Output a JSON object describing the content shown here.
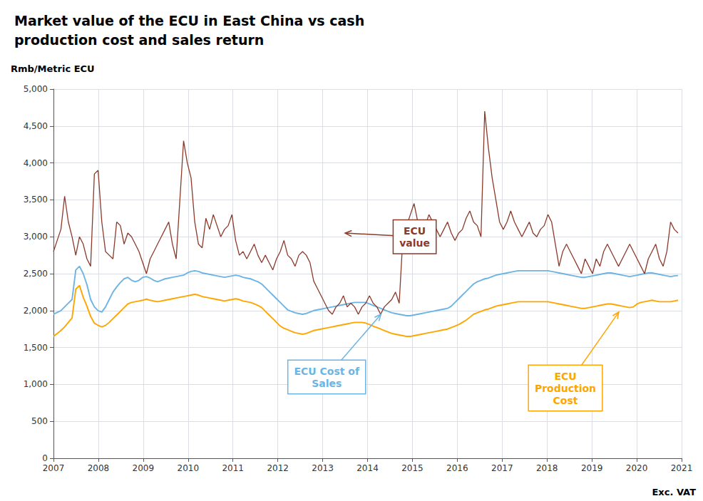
{
  "chart_data": {
    "type": "line",
    "title": "Market value of the ECU in East China vs cash\nproduction cost and sales return",
    "ylabel": "Rmb/Metric ECU",
    "footnote": "Exc. VAT",
    "grid": true,
    "xlim": [
      2007.0,
      2021.0
    ],
    "xticks": [
      2007,
      2008,
      2009,
      2010,
      2011,
      2012,
      2013,
      2014,
      2015,
      2016,
      2017,
      2018,
      2019,
      2020,
      2021
    ],
    "ylim": [
      0,
      5000
    ],
    "yticks": [
      0,
      500,
      {
        "value": 1000,
        "label": "1,000"
      },
      {
        "value": 1500,
        "label": "1,500"
      },
      {
        "value": 2000,
        "label": "2,000"
      },
      {
        "value": 2500,
        "label": "2,500"
      },
      {
        "value": 3000,
        "label": "3,000"
      },
      {
        "value": 3500,
        "label": "3,500"
      },
      {
        "value": 4000,
        "label": "4,000"
      },
      {
        "value": 4500,
        "label": "4,500"
      },
      {
        "value": 5000,
        "label": "5,000"
      }
    ],
    "x": [
      2007,
      2007.082857,
      2007.165714,
      2007.248571,
      2007.331429,
      2007.414286,
      2007.497143,
      2007.58,
      2007.662857,
      2007.745714,
      2007.828571,
      2007.911429,
      2007.994286,
      2008.077143,
      2008.16,
      2008.242857,
      2008.325714,
      2008.408571,
      2008.491429,
      2008.574286,
      2008.657143,
      2008.74,
      2008.822857,
      2008.905714,
      2008.988571,
      2009.071429,
      2009.154286,
      2009.237143,
      2009.32,
      2009.402857,
      2009.485714,
      2009.568571,
      2009.651429,
      2009.734286,
      2009.817143,
      2009.9,
      2009.982857,
      2010.065714,
      2010.148571,
      2010.231429,
      2010.314286,
      2010.397143,
      2010.48,
      2010.562857,
      2010.645714,
      2010.728571,
      2010.811429,
      2010.894286,
      2010.977143,
      2011.06,
      2011.142857,
      2011.225714,
      2011.308571,
      2011.391429,
      2011.474286,
      2011.557143,
      2011.64,
      2011.722857,
      2011.805714,
      2011.888571,
      2011.971429,
      2012.054286,
      2012.137143,
      2012.22,
      2012.302857,
      2012.385714,
      2012.468571,
      2012.551429,
      2012.634286,
      2012.717143,
      2012.8,
      2012.882857,
      2012.965714,
      2013.048571,
      2013.131429,
      2013.214286,
      2013.297143,
      2013.38,
      2013.462857,
      2013.545714,
      2013.628571,
      2013.711429,
      2013.794286,
      2013.877143,
      2013.96,
      2014.042857,
      2014.125714,
      2014.208571,
      2014.291429,
      2014.374286,
      2014.457143,
      2014.54,
      2014.622857,
      2014.705714,
      2014.788571,
      2014.871429,
      2014.954286,
      2015.037143,
      2015.12,
      2015.202857,
      2015.285714,
      2015.368571,
      2015.451429,
      2015.534286,
      2015.617143,
      2015.7,
      2015.782857,
      2015.865714,
      2015.948571,
      2016.031429,
      2016.114286,
      2016.197143,
      2016.28,
      2016.362857,
      2016.445714,
      2016.528571,
      2016.611429,
      2016.694286,
      2016.777143,
      2016.86,
      2016.942857,
      2017.025714,
      2017.108571,
      2017.191429,
      2017.274286,
      2017.357143,
      2017.44,
      2017.522857,
      2017.605714,
      2017.688571,
      2017.771429,
      2017.854286,
      2017.937143,
      2018.02,
      2018.102857,
      2018.185714,
      2018.268571,
      2018.351429,
      2018.434286,
      2018.517143,
      2018.6,
      2018.682857,
      2018.765714,
      2018.848571,
      2018.931429,
      2019.014286,
      2019.097143,
      2019.18,
      2019.262857,
      2019.345714,
      2019.428571,
      2019.511429,
      2019.594286,
      2019.677143,
      2019.76,
      2019.842857,
      2019.925714,
      2020.008571,
      2020.091429,
      2020.174286,
      2020.257143,
      2020.34,
      2020.422857,
      2020.505714,
      2020.588571,
      2020.671429,
      2020.754286,
      2020.837143,
      2020.92
    ],
    "series": [
      {
        "color": "#8B3A2A",
        "values": [
          2800,
          2950,
          3100,
          3550,
          3200,
          3000,
          2750,
          3000,
          2900,
          2700,
          2600,
          3850,
          3900,
          3200,
          2800,
          2750,
          2700,
          3200,
          3150,
          2900,
          3050,
          3000,
          2900,
          2800,
          2650,
          2500,
          2700,
          2800,
          2900,
          3000,
          3100,
          3200,
          2900,
          2700,
          3500,
          4300,
          4000,
          3800,
          3200,
          2900,
          2850,
          3250,
          3100,
          3300,
          3150,
          3000,
          3100,
          3150,
          3300,
          2950,
          2750,
          2800,
          2700,
          2800,
          2900,
          2750,
          2650,
          2750,
          2650,
          2550,
          2700,
          2800,
          2950,
          2750,
          2700,
          2600,
          2750,
          2800,
          2750,
          2650,
          2400,
          2300,
          2200,
          2100,
          2000,
          1950,
          2050,
          2100,
          2200,
          2050,
          2100,
          2050,
          1950,
          2050,
          2100,
          2200,
          2100,
          2050,
          1950,
          2050,
          2100,
          2150,
          2250,
          2100,
          3000,
          3150,
          3300,
          3450,
          3200,
          2950,
          3150,
          3300,
          3200,
          3100,
          3000,
          3100,
          3200,
          3050,
          2950,
          3050,
          3100,
          3250,
          3350,
          3200,
          3150,
          3000,
          4700,
          4200,
          3800,
          3500,
          3200,
          3100,
          3200,
          3350,
          3200,
          3100,
          3000,
          3100,
          3200,
          3050,
          3000,
          3100,
          3150,
          3300,
          3200,
          2900,
          2600,
          2800,
          2900,
          2800,
          2700,
          2600,
          2500,
          2700,
          2600,
          2500,
          2700,
          2600,
          2800,
          2900,
          2800,
          2700,
          2600,
          2700,
          2800,
          2900,
          2800,
          2700,
          2600,
          2500,
          2700,
          2800,
          2900,
          2700,
          2600,
          2800,
          3200,
          3100,
          3050
        ]
      },
      {
        "color": "#6CB4E4",
        "values": [
          1950,
          1975,
          2000,
          2050,
          2100,
          2150,
          2550,
          2600,
          2500,
          2350,
          2150,
          2050,
          2000,
          1980,
          2050,
          2150,
          2250,
          2320,
          2380,
          2430,
          2450,
          2410,
          2390,
          2410,
          2450,
          2460,
          2440,
          2410,
          2390,
          2410,
          2430,
          2440,
          2450,
          2460,
          2470,
          2480,
          2510,
          2530,
          2540,
          2530,
          2510,
          2500,
          2490,
          2480,
          2470,
          2460,
          2450,
          2460,
          2470,
          2480,
          2470,
          2450,
          2440,
          2430,
          2410,
          2390,
          2360,
          2310,
          2260,
          2210,
          2160,
          2110,
          2060,
          2010,
          1990,
          1970,
          1960,
          1950,
          1960,
          1980,
          2000,
          2010,
          2020,
          2030,
          2040,
          2050,
          2060,
          2070,
          2080,
          2090,
          2100,
          2110,
          2110,
          2110,
          2110,
          2090,
          2070,
          2050,
          2030,
          2010,
          1990,
          1970,
          1960,
          1950,
          1940,
          1930,
          1930,
          1940,
          1950,
          1960,
          1970,
          1980,
          1990,
          2000,
          2010,
          2020,
          2030,
          2060,
          2110,
          2160,
          2210,
          2260,
          2310,
          2360,
          2390,
          2410,
          2430,
          2440,
          2460,
          2480,
          2490,
          2500,
          2510,
          2520,
          2530,
          2540,
          2540,
          2540,
          2540,
          2540,
          2540,
          2540,
          2540,
          2540,
          2530,
          2520,
          2510,
          2500,
          2490,
          2480,
          2470,
          2460,
          2450,
          2450,
          2460,
          2470,
          2480,
          2490,
          2500,
          2510,
          2510,
          2500,
          2490,
          2480,
          2470,
          2460,
          2470,
          2480,
          2490,
          2500,
          2510,
          2510,
          2500,
          2490,
          2480,
          2470,
          2460,
          2470,
          2475
        ]
      },
      {
        "color": "#FFA500",
        "values": [
          1650,
          1690,
          1730,
          1780,
          1840,
          1900,
          2290,
          2340,
          2180,
          2060,
          1920,
          1830,
          1800,
          1780,
          1800,
          1840,
          1890,
          1940,
          1990,
          2040,
          2090,
          2110,
          2120,
          2130,
          2140,
          2155,
          2140,
          2130,
          2120,
          2130,
          2140,
          2150,
          2160,
          2170,
          2180,
          2190,
          2200,
          2210,
          2220,
          2210,
          2190,
          2180,
          2170,
          2160,
          2150,
          2140,
          2130,
          2140,
          2150,
          2160,
          2150,
          2130,
          2120,
          2110,
          2090,
          2070,
          2040,
          1990,
          1940,
          1890,
          1840,
          1790,
          1760,
          1740,
          1720,
          1700,
          1690,
          1680,
          1690,
          1710,
          1730,
          1740,
          1750,
          1760,
          1770,
          1780,
          1790,
          1800,
          1810,
          1820,
          1830,
          1840,
          1840,
          1840,
          1830,
          1810,
          1790,
          1770,
          1750,
          1730,
          1710,
          1690,
          1680,
          1670,
          1660,
          1650,
          1650,
          1660,
          1670,
          1680,
          1690,
          1700,
          1710,
          1720,
          1730,
          1740,
          1750,
          1770,
          1790,
          1810,
          1840,
          1870,
          1910,
          1950,
          1970,
          1990,
          2010,
          2020,
          2040,
          2060,
          2070,
          2080,
          2090,
          2100,
          2110,
          2120,
          2120,
          2120,
          2120,
          2120,
          2120,
          2120,
          2120,
          2120,
          2110,
          2100,
          2090,
          2080,
          2070,
          2060,
          2050,
          2040,
          2030,
          2030,
          2040,
          2050,
          2060,
          2070,
          2080,
          2090,
          2090,
          2080,
          2070,
          2060,
          2050,
          2040,
          2050,
          2090,
          2110,
          2120,
          2130,
          2140,
          2130,
          2120,
          2120,
          2120,
          2120,
          2130,
          2140
        ]
      }
    ],
    "annotations": [
      {
        "text": "ECU\nvalue",
        "x": 2013.5,
        "y": 3050,
        "color": "#8B3A2A"
      },
      {
        "text": "ECU Cost of\nSales",
        "x": 2014.3,
        "y": 1950,
        "color": "#6CB4E4"
      },
      {
        "text": "ECU\nProduction\nCost",
        "x": 2019.6,
        "y": 1980,
        "color": "#FFA500"
      }
    ]
  }
}
